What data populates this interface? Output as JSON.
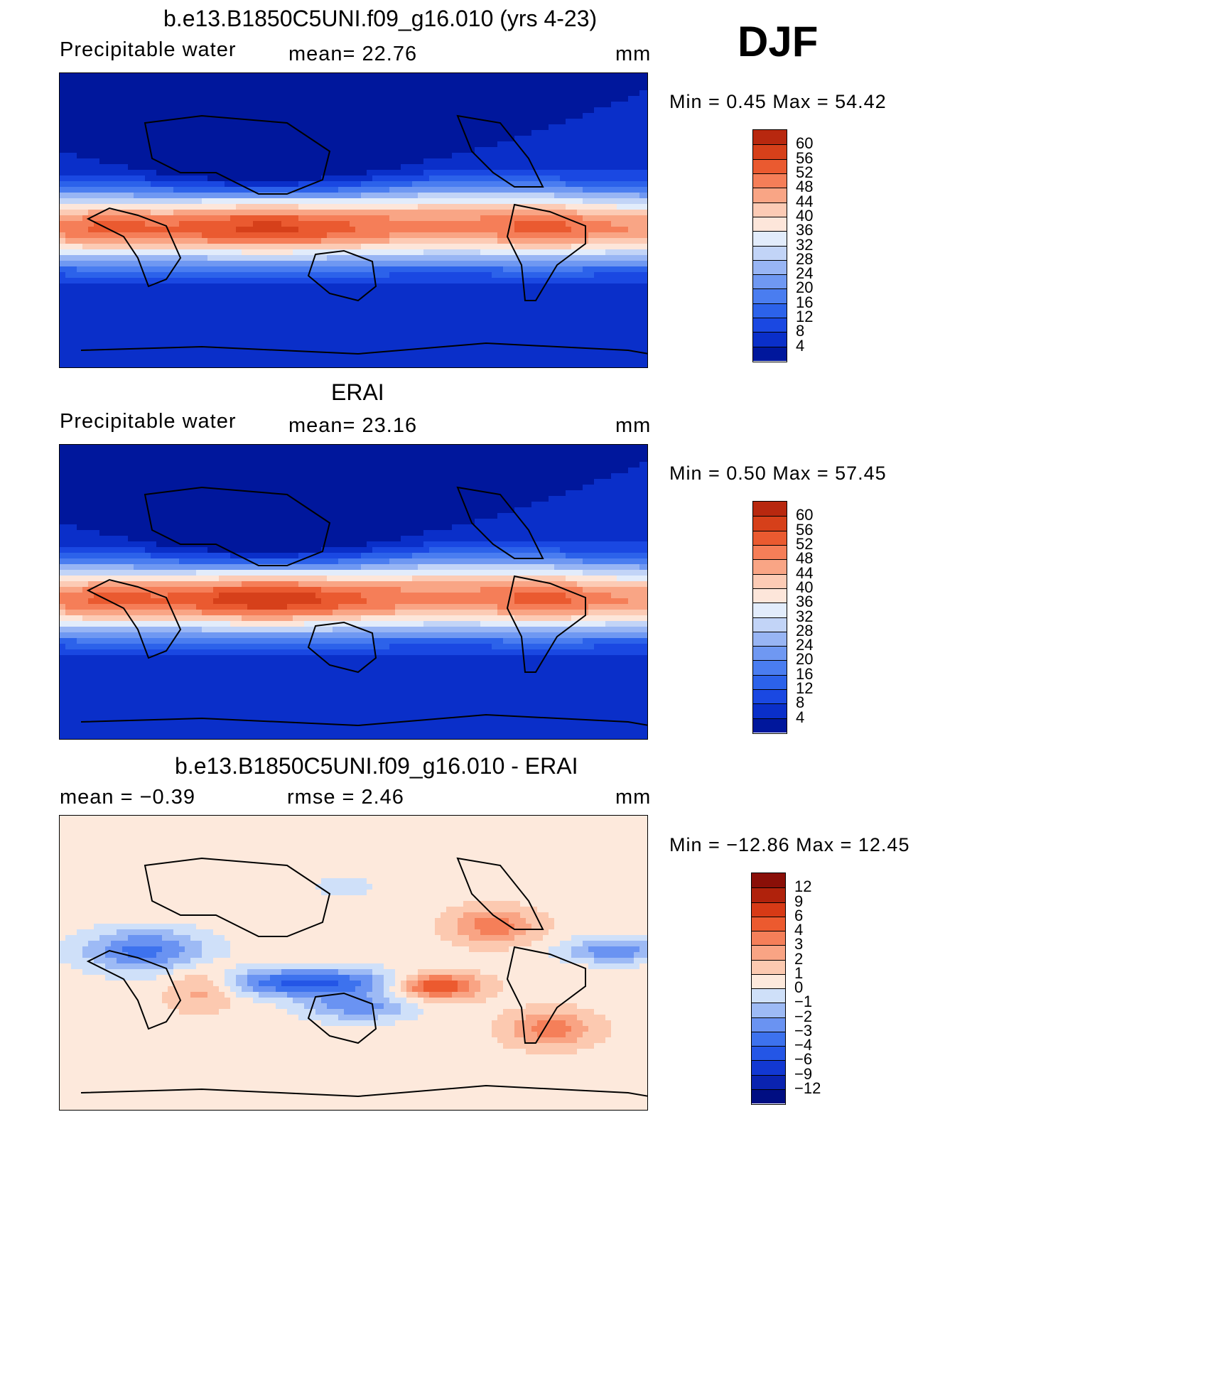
{
  "season": "DJF",
  "panels": [
    {
      "id": "model",
      "title": "b.e13.B1850C5UNI.f09_g16.010 (yrs 4-23)",
      "left_label": "Precipitable  water",
      "center_label": "mean=   22.76",
      "units": "mm",
      "minmax": "Min  =     0.45  Max  =    54.42",
      "legend_labels": [
        "60",
        "56",
        "52",
        "48",
        "44",
        "40",
        "36",
        "32",
        "28",
        "24",
        "20",
        "16",
        "12",
        "8",
        "4"
      ]
    },
    {
      "id": "obs",
      "title": "ERAI",
      "left_label": "Precipitable  water",
      "center_label": "mean=   23.16",
      "units": "mm",
      "minmax": "Min  =     0.50  Max  =    57.45",
      "legend_labels": [
        "60",
        "56",
        "52",
        "48",
        "44",
        "40",
        "36",
        "32",
        "28",
        "24",
        "20",
        "16",
        "12",
        "8",
        "4"
      ]
    },
    {
      "id": "diff",
      "title": "b.e13.B1850C5UNI.f09_g16.010 - ERAI",
      "left_label": "mean  =   −0.39",
      "center_label": "rmse  =     2.46",
      "units": "mm",
      "minmax": "Min  = −12.86  Max  =    12.45",
      "legend_labels": [
        "12",
        "9",
        "6",
        "4",
        "3",
        "2",
        "1",
        "0",
        "−1",
        "−2",
        "−3",
        "−4",
        "−6",
        "−9",
        "−12"
      ]
    }
  ],
  "colors": {
    "abs_scale": [
      "#000e82",
      "#00179c",
      "#0a2fc9",
      "#1a48e2",
      "#2c62ea",
      "#4a7df0",
      "#6f98f2",
      "#98b5f4",
      "#c2d4f7",
      "#e2ecfb",
      "#fde6da",
      "#fccbb5",
      "#f9a585",
      "#f57e58",
      "#ea5a30",
      "#d6401a",
      "#b8280f",
      "#8e1008"
    ],
    "diff_scale": [
      "#000e82",
      "#0a23b0",
      "#1238d2",
      "#2456e6",
      "#3d72ee",
      "#6a93f2",
      "#9dbaf5",
      "#cfe0f9",
      "#fde9dc",
      "#fcc9b0",
      "#f9a484",
      "#f57f59",
      "#ec5a2f",
      "#d73a16",
      "#b0220c",
      "#8a0f08"
    ]
  }
}
